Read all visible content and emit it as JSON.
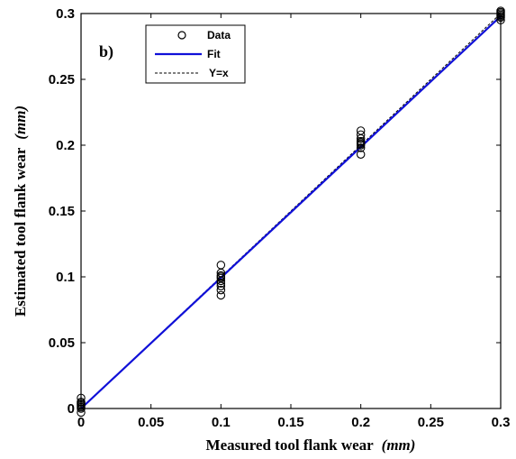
{
  "chart_data": {
    "type": "scatter",
    "panel_label": "b)",
    "xlabel_text": "Measured tool flank wear",
    "xlabel_unit": "(mm)",
    "ylabel_text": "Estimated tool flank wear",
    "ylabel_unit": "(mm)",
    "xlim": [
      0,
      0.3
    ],
    "ylim": [
      0,
      0.3
    ],
    "x_ticks": [
      0,
      0.05,
      0.1,
      0.15,
      0.2,
      0.25,
      0.3
    ],
    "x_tick_labels": [
      "0",
      "0.05",
      "0.1",
      "0.15",
      "0.2",
      "0.25",
      "0.3"
    ],
    "y_ticks": [
      0,
      0.05,
      0.1,
      0.15,
      0.2,
      0.25,
      0.3
    ],
    "y_tick_labels": [
      "0",
      "0.05",
      "0.1",
      "0.15",
      "0.2",
      "0.25",
      "0.3"
    ],
    "grid": false,
    "legend_position": "top-left",
    "legend": {
      "data_label": "Data",
      "fit_label": "Fit",
      "identity_label": "Y=x"
    },
    "series": [
      {
        "name": "Data",
        "kind": "markers",
        "marker": "open-circle",
        "color": "#000000",
        "points": [
          {
            "x": 0,
            "y": -0.003
          },
          {
            "x": 0,
            "y": 0.0
          },
          {
            "x": 0,
            "y": 0.001
          },
          {
            "x": 0,
            "y": 0.002
          },
          {
            "x": 0,
            "y": 0.003
          },
          {
            "x": 0,
            "y": 0.004
          },
          {
            "x": 0,
            "y": 0.005
          },
          {
            "x": 0,
            "y": 0.008
          },
          {
            "x": 0.1,
            "y": 0.086
          },
          {
            "x": 0.1,
            "y": 0.09
          },
          {
            "x": 0.1,
            "y": 0.093
          },
          {
            "x": 0.1,
            "y": 0.095
          },
          {
            "x": 0.1,
            "y": 0.097
          },
          {
            "x": 0.1,
            "y": 0.099
          },
          {
            "x": 0.1,
            "y": 0.1
          },
          {
            "x": 0.1,
            "y": 0.101
          },
          {
            "x": 0.1,
            "y": 0.103
          },
          {
            "x": 0.1,
            "y": 0.109
          },
          {
            "x": 0.2,
            "y": 0.193
          },
          {
            "x": 0.2,
            "y": 0.198
          },
          {
            "x": 0.2,
            "y": 0.2
          },
          {
            "x": 0.2,
            "y": 0.201
          },
          {
            "x": 0.2,
            "y": 0.202
          },
          {
            "x": 0.2,
            "y": 0.203
          },
          {
            "x": 0.2,
            "y": 0.205
          },
          {
            "x": 0.2,
            "y": 0.208
          },
          {
            "x": 0.2,
            "y": 0.211
          },
          {
            "x": 0.3,
            "y": 0.295
          },
          {
            "x": 0.3,
            "y": 0.297
          },
          {
            "x": 0.3,
            "y": 0.298
          },
          {
            "x": 0.3,
            "y": 0.299
          },
          {
            "x": 0.3,
            "y": 0.3
          },
          {
            "x": 0.3,
            "y": 0.301
          },
          {
            "x": 0.3,
            "y": 0.302
          }
        ]
      },
      {
        "name": "Fit",
        "kind": "line",
        "color": "#1010d8",
        "x": [
          0,
          0.3
        ],
        "y": [
          0.0,
          0.298
        ]
      },
      {
        "name": "Y=x",
        "kind": "dashed-line",
        "color": "#000000",
        "x": [
          0,
          0.3
        ],
        "y": [
          0,
          0.3
        ]
      }
    ]
  }
}
